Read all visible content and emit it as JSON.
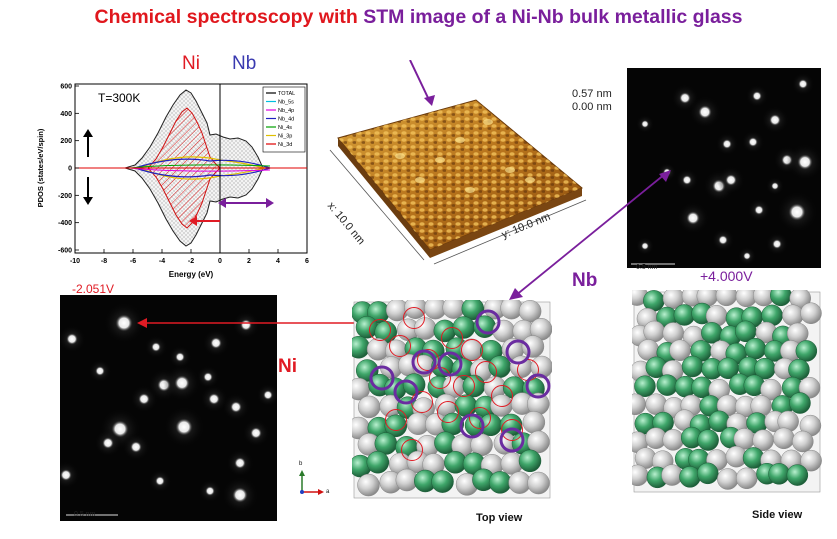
{
  "title": {
    "part1": "Chemical spectroscopy with ",
    "part2": "STM image of a Ni-Nb bulk metallic glass",
    "color1": "#e0171d",
    "color2": "#7a1f9c"
  },
  "pdos_plot": {
    "temperature_label": "T=300K",
    "ni_label": "Ni",
    "nb_label": "Nb",
    "ylabel": "PDOS (states/eV/spin)",
    "xlabel": "Energy (eV)",
    "xticks": [
      "-10",
      "-8",
      "-6",
      "-4",
      "-2",
      "0",
      "2",
      "4",
      "6"
    ],
    "yticks": [
      "600",
      "400",
      "200",
      "0",
      "-200",
      "-400",
      "-600"
    ],
    "legend": [
      {
        "label": "TOTAL",
        "color": "#000000"
      },
      {
        "label": "Nb_5s",
        "color": "#00c0e0"
      },
      {
        "label": "Nb_4p",
        "color": "#e000e0"
      },
      {
        "label": "Nb_4d",
        "color": "#2020c0"
      },
      {
        "label": "Ni_4s",
        "color": "#00a000"
      },
      {
        "label": "Ni_3p",
        "color": "#e0c000"
      },
      {
        "label": "Ni_3d",
        "color": "#e00000"
      }
    ]
  },
  "stm_surface": {
    "z_max": "0.57 nm",
    "z_min": "0.00 nm",
    "x_axis": "x: 10.0 nm",
    "y_axis": "y: 10.0 nm"
  },
  "ni_image": {
    "voltage": "-2.051V",
    "element": "Ni",
    "scale_bar": "0.5 nm"
  },
  "nb_image": {
    "element": "Nb",
    "voltage": "+4.000V",
    "scale_bar": "0.5 nm"
  },
  "top_view": {
    "caption": "Top view",
    "axis_b": "b",
    "axis_a": "a"
  },
  "side_view": {
    "caption": "Side view"
  },
  "colors": {
    "ni_atom": "#d8d8d8",
    "nb_atom": "#3fa66a",
    "ni_marker": "#e01b24",
    "nb_marker": "#6a2ca0"
  }
}
